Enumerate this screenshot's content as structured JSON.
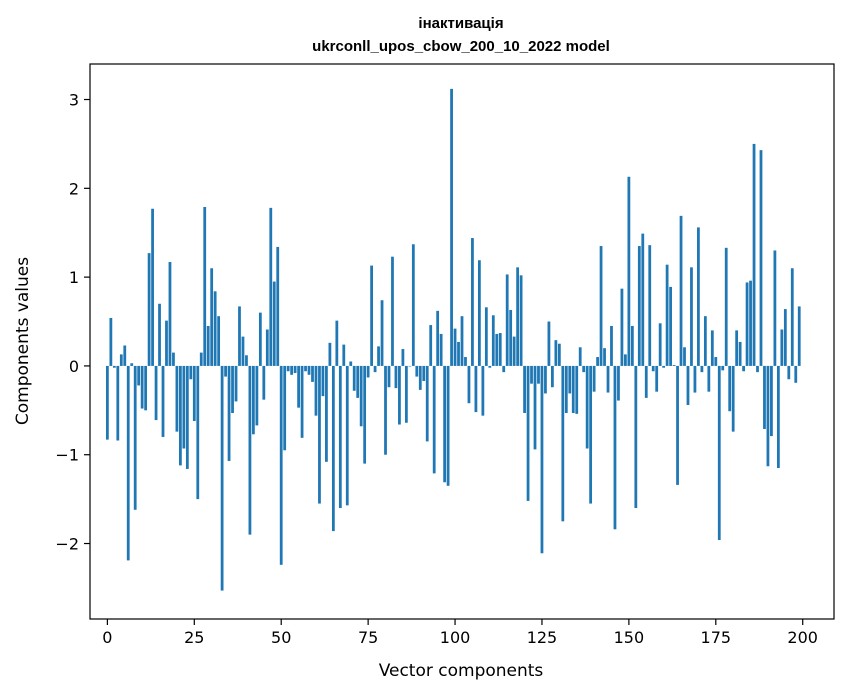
{
  "chart_data": {
    "type": "bar",
    "title": "інактивація",
    "subtitle": "ukrconll_upos_cbow_200_10_2022 model",
    "xlabel": "Vector components",
    "ylabel": "Components values",
    "xlim": [
      -5,
      209
    ],
    "ylim": [
      -2.85,
      3.4
    ],
    "xticks": [
      0,
      25,
      50,
      75,
      100,
      125,
      150,
      175,
      200
    ],
    "xtick_labels": [
      "0",
      "25",
      "50",
      "75",
      "100",
      "125",
      "150",
      "175",
      "200"
    ],
    "yticks": [
      -2,
      -1,
      0,
      1,
      2,
      3
    ],
    "ytick_labels": [
      "−2",
      "−1",
      "0",
      "1",
      "2",
      "3"
    ],
    "grid": false,
    "bar_color": "#1f77b4",
    "x": [
      0,
      1,
      2,
      3,
      4,
      5,
      6,
      7,
      8,
      9,
      10,
      11,
      12,
      13,
      14,
      15,
      16,
      17,
      18,
      19,
      20,
      21,
      22,
      23,
      24,
      25,
      26,
      27,
      28,
      29,
      30,
      31,
      32,
      33,
      34,
      35,
      36,
      37,
      38,
      39,
      40,
      41,
      42,
      43,
      44,
      45,
      46,
      47,
      48,
      49,
      50,
      51,
      52,
      53,
      54,
      55,
      56,
      57,
      58,
      59,
      60,
      61,
      62,
      63,
      64,
      65,
      66,
      67,
      68,
      69,
      70,
      71,
      72,
      73,
      74,
      75,
      76,
      77,
      78,
      79,
      80,
      81,
      82,
      83,
      84,
      85,
      86,
      87,
      88,
      89,
      90,
      91,
      92,
      93,
      94,
      95,
      96,
      97,
      98,
      99,
      100,
      101,
      102,
      103,
      104,
      105,
      106,
      107,
      108,
      109,
      110,
      111,
      112,
      113,
      114,
      115,
      116,
      117,
      118,
      119,
      120,
      121,
      122,
      123,
      124,
      125,
      126,
      127,
      128,
      129,
      130,
      131,
      132,
      133,
      134,
      135,
      136,
      137,
      138,
      139,
      140,
      141,
      142,
      143,
      144,
      145,
      146,
      147,
      148,
      149,
      150,
      151,
      152,
      153,
      154,
      155,
      156,
      157,
      158,
      159,
      160,
      161,
      162,
      163,
      164,
      165,
      166,
      167,
      168,
      169,
      170,
      171,
      172,
      173,
      174,
      175,
      176,
      177,
      178,
      179,
      180,
      181,
      182,
      183,
      184,
      185,
      186,
      187,
      188,
      189,
      190,
      191,
      192,
      193,
      194,
      195,
      196,
      197,
      198,
      199
    ],
    "values": [
      -0.83,
      0.54,
      -0.02,
      -0.84,
      0.13,
      0.23,
      -2.19,
      0.03,
      -1.62,
      -0.22,
      -0.48,
      -0.5,
      1.27,
      1.77,
      -0.61,
      0.7,
      -0.8,
      0.51,
      1.17,
      0.15,
      -0.74,
      -1.12,
      -0.93,
      -1.16,
      -0.15,
      -0.62,
      -1.5,
      0.15,
      1.79,
      0.45,
      1.1,
      0.84,
      0.56,
      -2.53,
      -0.12,
      -1.07,
      -0.53,
      -0.4,
      0.67,
      0.33,
      0.12,
      -1.9,
      -0.77,
      -0.67,
      0.6,
      -0.38,
      0.41,
      1.78,
      0.95,
      1.34,
      -2.24,
      -0.95,
      -0.06,
      -0.1,
      -0.08,
      -0.47,
      -0.81,
      -0.06,
      -0.1,
      -0.18,
      -0.56,
      -1.55,
      -0.34,
      -1.08,
      0.26,
      -1.86,
      0.51,
      -1.6,
      0.24,
      -1.57,
      0.05,
      -0.28,
      -0.36,
      -0.68,
      -1.1,
      -0.13,
      1.13,
      -0.07,
      0.22,
      0.74,
      -1.0,
      -0.24,
      1.23,
      -0.25,
      -0.66,
      0.19,
      -0.64,
      0.0,
      1.37,
      -0.12,
      -0.27,
      -0.17,
      -0.85,
      0.46,
      -1.21,
      0.62,
      0.36,
      -1.31,
      -1.35,
      3.12,
      0.42,
      0.27,
      0.56,
      0.1,
      -0.42,
      1.44,
      -0.52,
      1.19,
      -0.56,
      0.66,
      -0.02,
      0.57,
      0.36,
      0.37,
      -0.07,
      1.03,
      0.63,
      0.33,
      1.11,
      1.02,
      -0.53,
      -1.52,
      -0.2,
      -0.94,
      -0.2,
      -2.11,
      -0.31,
      0.5,
      -0.24,
      0.29,
      0.25,
      -1.75,
      -0.53,
      -0.31,
      -0.53,
      -0.54,
      0.21,
      -0.07,
      -0.93,
      -1.55,
      -0.29,
      0.1,
      1.35,
      0.2,
      -0.3,
      0.45,
      -1.84,
      -0.39,
      0.87,
      0.13,
      2.13,
      0.45,
      -1.6,
      1.35,
      1.49,
      -0.36,
      1.36,
      -0.06,
      -0.29,
      0.48,
      -0.02,
      1.14,
      0.89,
      0.01,
      -1.34,
      1.69,
      0.21,
      -0.44,
      1.11,
      -0.3,
      1.56,
      -0.07,
      0.56,
      -0.29,
      0.4,
      0.1,
      -1.96,
      -0.05,
      1.33,
      -0.51,
      -0.74,
      0.4,
      0.27,
      -0.06,
      0.94,
      0.96,
      2.5,
      -0.07,
      2.43,
      -0.71,
      -1.13,
      -0.79,
      1.3,
      -1.15,
      0.41,
      0.64,
      -0.15,
      1.1,
      -0.19,
      0.67
    ]
  }
}
